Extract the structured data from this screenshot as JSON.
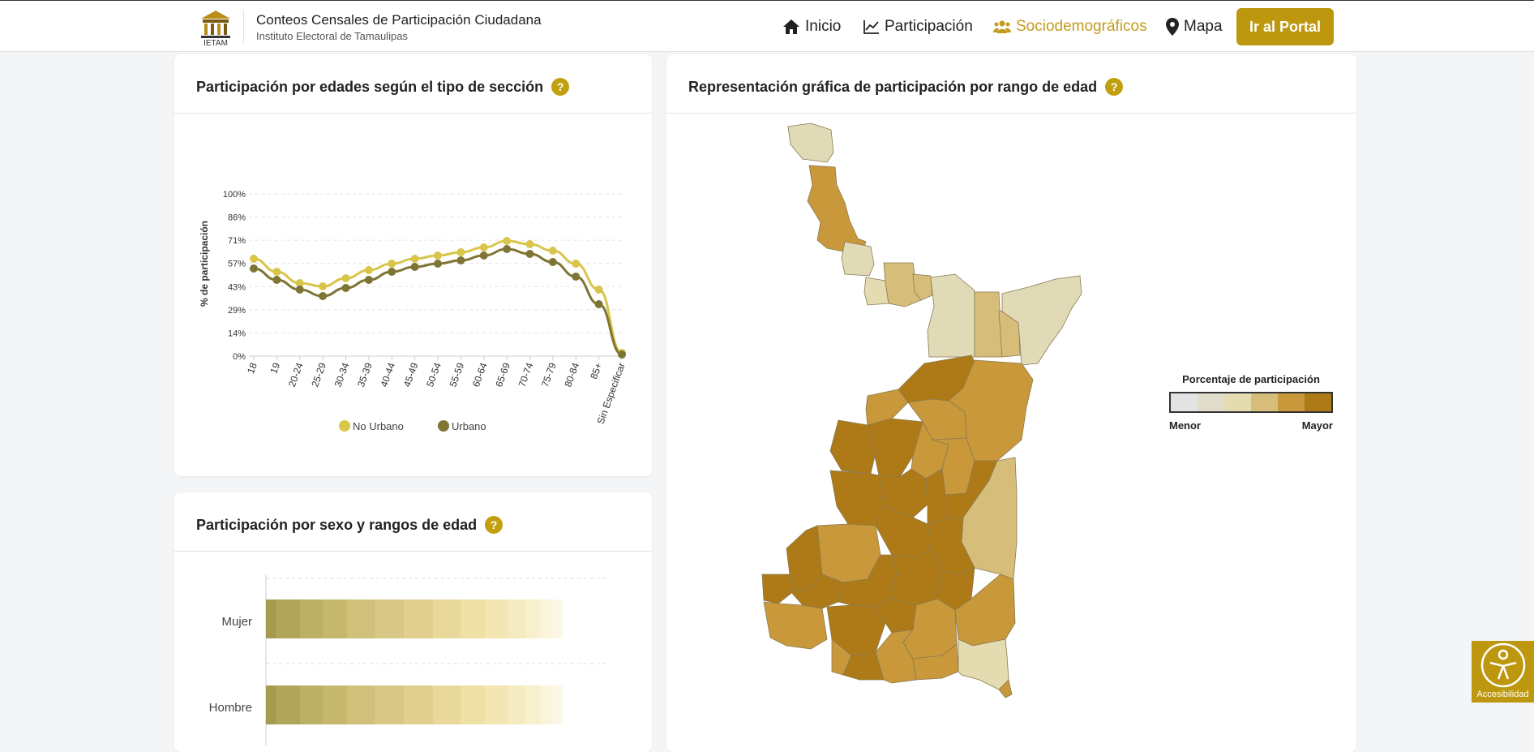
{
  "header": {
    "logo_text": "IETAM",
    "title": "Conteos Censales de Participación Ciudadana",
    "subtitle": "Instituto Electoral de Tamaulipas",
    "nav": [
      {
        "label": "Inicio",
        "icon": "home-icon"
      },
      {
        "label": "Participación",
        "icon": "line-chart-icon"
      },
      {
        "label": "Sociodemográficos",
        "icon": "users-icon",
        "active": true
      },
      {
        "label": "Mapa",
        "icon": "map-marker-icon"
      }
    ],
    "portal_label": "Ir al Portal"
  },
  "colors": {
    "accent": "#bd980f",
    "no_urbano": "#d9c54a",
    "urbano": "#7e7434",
    "active_nav": "#c29b1e"
  },
  "age_chart": {
    "title": "Participación por edades según el tipo de sección",
    "help": "?",
    "chart_data": {
      "type": "line",
      "ylabel": "% de participación",
      "yticks": [
        "100%",
        "86%",
        "71%",
        "57%",
        "43%",
        "29%",
        "14%",
        "0%"
      ],
      "ylim": [
        0,
        100
      ],
      "categories": [
        "18",
        "19",
        "20-24",
        "25-29",
        "30-34",
        "35-39",
        "40-44",
        "45-49",
        "50-54",
        "55-59",
        "60-64",
        "65-69",
        "70-74",
        "75-79",
        "80-84",
        "85+",
        "Sin Especificar"
      ],
      "series": [
        {
          "name": "No Urbano",
          "values": [
            60,
            52,
            45,
            43,
            48,
            53,
            57,
            60,
            62,
            64,
            67,
            71,
            69,
            65,
            57,
            41,
            2
          ]
        },
        {
          "name": "Urbano",
          "values": [
            54,
            47,
            41,
            37,
            42,
            47,
            52,
            55,
            57,
            59,
            62,
            66,
            63,
            58,
            49,
            32,
            1
          ]
        }
      ]
    }
  },
  "sex_chart": {
    "title": "Participación por sexo y rangos de edad",
    "help": "?",
    "rows": [
      "Mujer",
      "Hombre"
    ]
  },
  "map_card": {
    "title": "Representación gráfica de participación por rango de edad",
    "help": "?",
    "legend_title": "Porcentaje de participación",
    "legend_colors": [
      "#e3e3e3",
      "#e0dccb",
      "#e4dcb0",
      "#d6bd7a",
      "#c8983b",
      "#ae7a17"
    ],
    "legend_min": "Menor",
    "legend_max": "Mayor"
  },
  "accessibility": {
    "label": "Accesibilidad"
  }
}
